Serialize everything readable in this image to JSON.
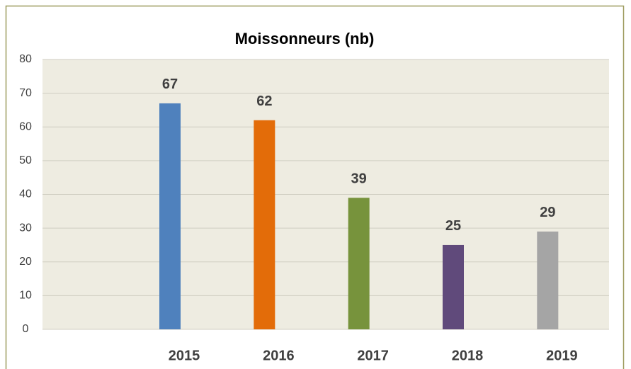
{
  "chart_data": {
    "type": "bar",
    "title": "Moissonneurs (nb)",
    "categories": [
      null,
      "2015",
      "2016",
      "2017",
      "2018",
      "2019"
    ],
    "values": [
      null,
      67,
      62,
      39,
      25,
      29
    ],
    "colors": [
      null,
      "#4f81bd",
      "#e36c09",
      "#77933c",
      "#604a7b",
      "#a5a5a5"
    ],
    "ylim": [
      0,
      80
    ],
    "yticks": [
      0,
      10,
      20,
      30,
      40,
      50,
      60,
      70,
      80
    ],
    "grid": true
  }
}
